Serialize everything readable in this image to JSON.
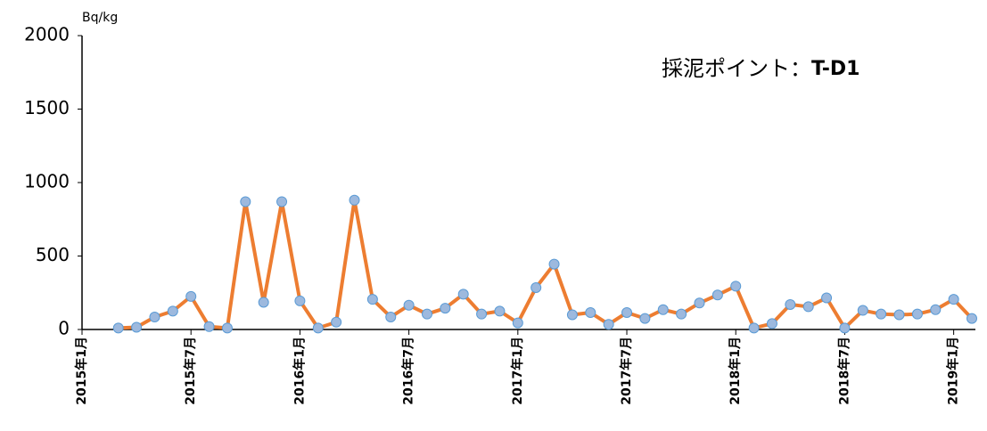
{
  "chart_data": {
    "type": "line",
    "y_axis_label": "Bq/kg",
    "annotation": {
      "label": "採泥ポイント：",
      "point": "T-D1"
    },
    "x": [
      "2015-03",
      "2015-04",
      "2015-05",
      "2015-06",
      "2015-07",
      "2015-08",
      "2015-09",
      "2015-10",
      "2015-11",
      "2015-12",
      "2016-01",
      "2016-02",
      "2016-03",
      "2016-04",
      "2016-05",
      "2016-06",
      "2016-07",
      "2016-08",
      "2016-09",
      "2016-10",
      "2016-11",
      "2016-12",
      "2017-01",
      "2017-02",
      "2017-03",
      "2017-04",
      "2017-05",
      "2017-06",
      "2017-07",
      "2017-08",
      "2017-09",
      "2017-10",
      "2017-11",
      "2017-12",
      "2018-01",
      "2018-02",
      "2018-03",
      "2018-04",
      "2018-05",
      "2018-06",
      "2018-07",
      "2018-08",
      "2018-09",
      "2018-10",
      "2018-11",
      "2018-12",
      "2019-01",
      "2019-02"
    ],
    "series": [
      {
        "name": "T-D1",
        "color": "#ED7D31",
        "marker_fill": "#9DB9DE",
        "marker_edge": "#5B9BD5",
        "values": [
          10,
          15,
          85,
          125,
          225,
          20,
          10,
          870,
          185,
          870,
          195,
          10,
          50,
          880,
          205,
          85,
          165,
          105,
          145,
          240,
          105,
          125,
          45,
          285,
          445,
          100,
          115,
          35,
          115,
          75,
          135,
          105,
          180,
          235,
          295,
          10,
          40,
          170,
          155,
          215,
          10,
          130,
          105,
          100,
          105,
          135,
          205,
          75
        ]
      }
    ],
    "xlim": [
      "2015-01",
      "2019-02"
    ],
    "xticks": [
      {
        "value": "2015-01",
        "label": "2015年1月"
      },
      {
        "value": "2015-07",
        "label": "2015年7月"
      },
      {
        "value": "2016-01",
        "label": "2016年1月"
      },
      {
        "value": "2016-07",
        "label": "2016年7月"
      },
      {
        "value": "2017-01",
        "label": "2017年1月"
      },
      {
        "value": "2017-07",
        "label": "2017年7月"
      },
      {
        "value": "2018-01",
        "label": "2018年1月"
      },
      {
        "value": "2018-07",
        "label": "2018年7月"
      },
      {
        "value": "2019-01",
        "label": "2019年1月"
      }
    ],
    "ylim": [
      0,
      2000
    ],
    "yticks": [
      0,
      500,
      1000,
      1500,
      2000
    ],
    "grid": false
  }
}
